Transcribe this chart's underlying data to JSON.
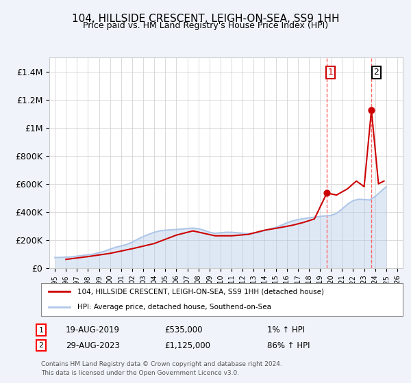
{
  "title": "104, HILLSIDE CRESCENT, LEIGH-ON-SEA, SS9 1HH",
  "subtitle": "Price paid vs. HM Land Registry's House Price Index (HPI)",
  "xlabel": "",
  "ylabel": "",
  "ylim": [
    0,
    1500000
  ],
  "yticks": [
    0,
    200000,
    400000,
    600000,
    800000,
    1000000,
    1200000,
    1400000
  ],
  "ytick_labels": [
    "£0",
    "£200K",
    "£400K",
    "£600K",
    "£800K",
    "£1M",
    "£1.2M",
    "£1.4M"
  ],
  "xlim": [
    1994.5,
    2026.5
  ],
  "transaction1_date": 2019.63,
  "transaction1_price": 535000,
  "transaction2_date": 2023.66,
  "transaction2_price": 1125000,
  "label1": "1",
  "label2": "2",
  "legend_line1": "104, HILLSIDE CRESCENT, LEIGH-ON-SEA, SS9 1HH (detached house)",
  "legend_line2": "HPI: Average price, detached house, Southend-on-Sea",
  "annotation1": [
    "1",
    "19-AUG-2019",
    "£535,000",
    "1% ↑ HPI"
  ],
  "annotation2": [
    "2",
    "29-AUG-2023",
    "£1,125,000",
    "86% ↑ HPI"
  ],
  "footer": "Contains HM Land Registry data © Crown copyright and database right 2024.\nThis data is licensed under the Open Government Licence v3.0.",
  "hpi_color": "#aec6e8",
  "price_color": "#cc0000",
  "dot_color": "#cc0000",
  "vline_color": "#ff6666",
  "background_color": "#f0f4fa",
  "plot_bg": "#ffffff",
  "hpi_data_x": [
    1995,
    1995.5,
    1996,
    1996.5,
    1997,
    1997.5,
    1998,
    1998.5,
    1999,
    1999.5,
    2000,
    2000.5,
    2001,
    2001.5,
    2002,
    2002.5,
    2003,
    2003.5,
    2004,
    2004.5,
    2005,
    2005.5,
    2006,
    2006.5,
    2007,
    2007.5,
    2008,
    2008.5,
    2009,
    2009.5,
    2010,
    2010.5,
    2011,
    2011.5,
    2012,
    2012.5,
    2013,
    2013.5,
    2014,
    2014.5,
    2015,
    2015.5,
    2016,
    2016.5,
    2017,
    2017.5,
    2018,
    2018.5,
    2019,
    2019.5,
    2020,
    2020.5,
    2021,
    2021.5,
    2022,
    2022.5,
    2023,
    2023.5,
    2024,
    2024.5,
    2025
  ],
  "hpi_data_y": [
    75000,
    76000,
    78000,
    80000,
    85000,
    90000,
    95000,
    100000,
    110000,
    120000,
    135000,
    148000,
    158000,
    168000,
    185000,
    205000,
    225000,
    240000,
    255000,
    265000,
    270000,
    272000,
    275000,
    278000,
    282000,
    285000,
    280000,
    270000,
    255000,
    248000,
    252000,
    255000,
    255000,
    252000,
    248000,
    245000,
    248000,
    255000,
    268000,
    278000,
    290000,
    305000,
    322000,
    335000,
    345000,
    352000,
    358000,
    362000,
    368000,
    372000,
    375000,
    390000,
    420000,
    455000,
    480000,
    490000,
    488000,
    485000,
    510000,
    545000,
    580000
  ],
  "price_data_x": [
    1996.0,
    1998.0,
    2000.0,
    2002.0,
    2004.0,
    2006.0,
    2007.5,
    2009.5,
    2011.0,
    2012.5,
    2014.0,
    2015.5,
    2016.5,
    2017.5,
    2018.5,
    2019.63,
    2020.5,
    2021.5,
    2022.3,
    2023.0,
    2023.66,
    2024.3,
    2024.8
  ],
  "price_data_y": [
    62000,
    82000,
    105000,
    138000,
    175000,
    235000,
    265000,
    230000,
    230000,
    240000,
    270000,
    290000,
    305000,
    325000,
    350000,
    535000,
    520000,
    565000,
    620000,
    580000,
    1125000,
    600000,
    620000
  ]
}
